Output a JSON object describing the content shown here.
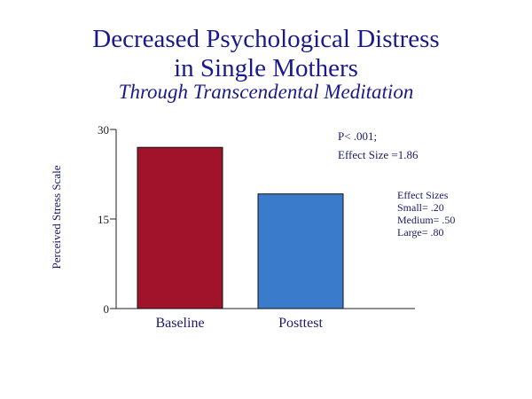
{
  "title_line1": "Decreased Psychological Distress",
  "title_line2": "in Single Mothers",
  "subtitle": "Through Transcendental Meditation",
  "annotations": {
    "p_value": "P< .001;",
    "effect_size": "Effect Size =1.86",
    "effect_sizes_heading": "Effect Sizes",
    "small": "Small= .20",
    "medium": "Medium= .50",
    "large": "Large= .80"
  },
  "chart_data": {
    "type": "bar",
    "title": "Decreased Psychological Distress in Single Mothers",
    "subtitle": "Through Transcendental Meditation",
    "categories": [
      "Baseline",
      "Posttest"
    ],
    "values": [
      27,
      19.2
    ],
    "colors": [
      "#a0132a",
      "#3a7bcb"
    ],
    "xlabel": "",
    "ylabel": "Perceived Stress Scale",
    "ylim": [
      0,
      30
    ],
    "yticks": [
      "0",
      "15",
      "30"
    ],
    "grid": false
  }
}
